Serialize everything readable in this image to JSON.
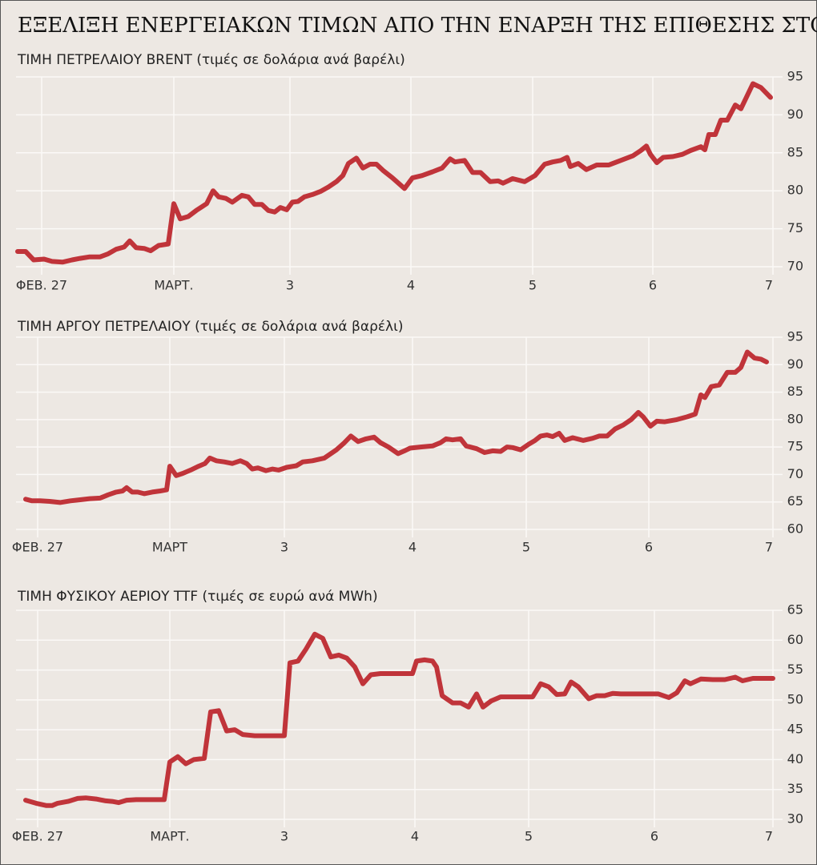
{
  "title": "ΕΞΕΛΙΞΗ ΕΝΕΡΓΕΙΑΚΩΝ ΤΙΜΩΝ ΑΠΟ ΤΗΝ ΕΝΑΡΞΗ ΤΗΣ ΕΠΙΘΕΣΗΣ ΣΤΟ ΙΡΑΝ",
  "chart_data": [
    {
      "type": "line",
      "subtitle": "ΤΙΜΗ ΠΕΤΡΕΛΑΙΟΥ BRENT (τιμές σε δολάρια ανά βαρέλι)",
      "color": "#c0343a",
      "grid": true,
      "xlim": [
        0,
        94.5
      ],
      "ylim": [
        70,
        95
      ],
      "yticks": [
        70,
        75,
        80,
        85,
        90,
        95
      ],
      "xticks": [
        {
          "value": 3.2,
          "label": "ΦΕΒ. 27"
        },
        {
          "value": 19.7,
          "label": "ΜΑΡΤ."
        },
        {
          "value": 34.2,
          "label": "3"
        },
        {
          "value": 49.3,
          "label": "4"
        },
        {
          "value": 64.5,
          "label": "5"
        },
        {
          "value": 79.5,
          "label": "6"
        },
        {
          "value": 94.5,
          "label": "7"
        }
      ],
      "x": [
        0.2,
        1.2,
        2.2,
        3.5,
        4.5,
        5.8,
        7,
        8,
        9.2,
        10.5,
        11.5,
        12.5,
        13.5,
        14.2,
        15,
        16,
        16.8,
        17.8,
        19,
        19.7,
        20.5,
        21.5,
        22.5,
        23.8,
        24.6,
        25.3,
        26.2,
        27,
        28.2,
        29,
        29.8,
        30.7,
        31.5,
        32.3,
        33,
        33.8,
        34.5,
        35.2,
        36,
        37,
        38,
        39,
        40,
        40.8,
        41.5,
        42.5,
        43.3,
        44.2,
        45,
        45.8,
        47,
        48.5,
        49.5,
        50.7,
        52,
        53.2,
        54.2,
        54.8,
        56,
        57,
        58,
        59.2,
        60.2,
        60.8,
        62,
        63.5,
        64.8,
        66,
        67,
        68,
        68.8,
        69.2,
        70.2,
        71.2,
        72.5,
        74,
        75.5,
        77,
        78,
        78.7,
        79.2,
        80,
        80.8,
        82,
        83.2,
        84.2,
        85.5,
        86,
        86.5,
        87.3,
        88,
        88.8,
        89.8,
        90.5,
        92,
        93,
        94.2
      ],
      "values": [
        72.0,
        72.0,
        70.9,
        71.0,
        70.7,
        70.6,
        70.9,
        71.1,
        71.3,
        71.3,
        71.7,
        72.3,
        72.6,
        73.4,
        72.5,
        72.4,
        72.1,
        72.8,
        73.0,
        78.3,
        76.3,
        76.6,
        77.4,
        78.3,
        80.0,
        79.2,
        79.0,
        78.5,
        79.4,
        79.2,
        78.2,
        78.2,
        77.4,
        77.2,
        77.8,
        77.5,
        78.5,
        78.6,
        79.2,
        79.5,
        79.9,
        80.5,
        81.2,
        82.0,
        83.6,
        84.3,
        83.0,
        83.5,
        83.5,
        82.7,
        81.7,
        80.3,
        81.7,
        82.0,
        82.5,
        83.0,
        84.2,
        83.8,
        84.0,
        82.4,
        82.4,
        81.2,
        81.3,
        81.0,
        81.6,
        81.2,
        82.0,
        83.5,
        83.8,
        84.0,
        84.4,
        83.2,
        83.6,
        82.8,
        83.4,
        83.4,
        84.0,
        84.6,
        85.3,
        85.9,
        84.8,
        83.7,
        84.4,
        84.5,
        84.8,
        85.3,
        85.8,
        85.4,
        87.4,
        87.4,
        89.3,
        89.3,
        91.3,
        90.8,
        94.1,
        93.6,
        92.3
      ]
    },
    {
      "type": "line",
      "subtitle": "ΤΙΜΗ ΑΡΓΟΥ ΠΕΤΡΕΛΑΙΟΥ (τιμές σε δολάρια ανά βαρέλι)",
      "color": "#c0343a",
      "grid": true,
      "xlim": [
        0,
        94.5
      ],
      "ylim": [
        60,
        95
      ],
      "yticks": [
        60,
        65,
        70,
        75,
        80,
        85,
        90,
        95
      ],
      "xticks": [
        {
          "value": 2.7,
          "label": "ΦΕΒ. 27"
        },
        {
          "value": 19.2,
          "label": "ΜΑΡΤ"
        },
        {
          "value": 33.5,
          "label": "3"
        },
        {
          "value": 49.5,
          "label": "4"
        },
        {
          "value": 63.7,
          "label": "5"
        },
        {
          "value": 79,
          "label": "6"
        },
        {
          "value": 94.5,
          "label": "7"
        }
      ],
      "x": [
        1.2,
        2,
        3,
        4.2,
        5.5,
        6.8,
        8,
        9.2,
        10.5,
        11.5,
        12.5,
        13.3,
        13.8,
        14.5,
        15.2,
        16,
        17,
        18,
        18.8,
        19.2,
        20,
        20.8,
        21.8,
        22.8,
        23.6,
        24.2,
        25,
        26,
        27,
        28,
        28.8,
        29.5,
        30.2,
        31.2,
        32,
        32.8,
        33.8,
        35,
        35.8,
        37,
        38.5,
        40,
        41,
        41.8,
        42.7,
        43.7,
        44.7,
        45.5,
        46.5,
        47.7,
        48.5,
        49.2,
        50.5,
        52,
        53,
        53.7,
        54.5,
        55.5,
        56.2,
        57.5,
        58.5,
        59.5,
        60.5,
        61.3,
        62,
        63,
        64,
        64.8,
        65.5,
        66.3,
        67,
        67.8,
        68.5,
        69.5,
        70.8,
        72,
        72.8,
        73.8,
        74.8,
        75.8,
        76.8,
        77.7,
        78.3,
        79.2,
        80,
        81,
        82.5,
        83.8,
        84.8,
        85.5,
        86,
        86.8,
        87.8,
        88.8,
        89.8,
        90.5,
        91.3,
        92.2,
        93,
        93.7
      ],
      "values": [
        65.5,
        65.2,
        65.2,
        65.1,
        64.9,
        65.2,
        65.4,
        65.6,
        65.7,
        66.3,
        66.8,
        67.0,
        67.6,
        66.8,
        66.8,
        66.5,
        66.8,
        67.0,
        67.2,
        71.5,
        69.8,
        70.2,
        70.8,
        71.5,
        72.0,
        73.0,
        72.5,
        72.3,
        72.0,
        72.5,
        72.0,
        71.0,
        71.2,
        70.7,
        71.0,
        70.8,
        71.3,
        71.6,
        72.3,
        72.5,
        73.0,
        74.5,
        75.8,
        77.0,
        76.0,
        76.5,
        76.8,
        75.8,
        75.0,
        73.8,
        74.3,
        74.8,
        75.0,
        75.2,
        75.8,
        76.5,
        76.3,
        76.5,
        75.2,
        74.7,
        74.0,
        74.3,
        74.2,
        75.0,
        74.9,
        74.5,
        75.5,
        76.2,
        77.0,
        77.2,
        76.9,
        77.5,
        76.2,
        76.7,
        76.2,
        76.6,
        77.0,
        77.0,
        78.3,
        79.0,
        80.0,
        81.3,
        80.5,
        78.8,
        79.7,
        79.6,
        80.0,
        80.5,
        81.0,
        84.5,
        84.0,
        86.0,
        86.3,
        88.6,
        88.6,
        89.5,
        92.3,
        91.2,
        91.0,
        90.5
      ]
    },
    {
      "type": "line",
      "subtitle": "ΤΙΜΗ ΦΥΣΙΚΟΥ ΑΕΡΙΟΥ TTF (τιμές σε ευρώ ανά MWh)",
      "color": "#c0343a",
      "grid": true,
      "xlim": [
        0,
        94.5
      ],
      "ylim": [
        30,
        65
      ],
      "yticks": [
        30,
        35,
        40,
        45,
        50,
        55,
        60,
        65
      ],
      "xticks": [
        {
          "value": 2.7,
          "label": "ΦΕΒ. 27"
        },
        {
          "value": 19.2,
          "label": "ΜΑΡΤ."
        },
        {
          "value": 33.5,
          "label": "3"
        },
        {
          "value": 49.8,
          "label": "4"
        },
        {
          "value": 64,
          "label": "5"
        },
        {
          "value": 79.7,
          "label": "6"
        },
        {
          "value": 94.5,
          "label": "7"
        }
      ],
      "x": [
        1.2,
        2.5,
        3.8,
        4.5,
        5.2,
        6.5,
        7.7,
        8.7,
        10,
        11.2,
        12,
        12.8,
        13.8,
        15,
        16.5,
        17.8,
        18.5,
        19.2,
        20.2,
        21.2,
        22.2,
        23.5,
        24.3,
        25.3,
        26.3,
        27.3,
        28.3,
        29.8,
        31.5,
        33.5,
        34.2,
        35.2,
        36.2,
        37.3,
        38.3,
        39.3,
        40.3,
        41.3,
        42.3,
        43.3,
        44.3,
        45.5,
        47,
        48.5,
        49.5,
        50,
        51,
        52,
        52.5,
        53.2,
        54.5,
        55.5,
        56.5,
        57.5,
        58.3,
        59.3,
        60.5,
        62,
        63.5,
        64.5,
        65.5,
        66.5,
        67.5,
        68.5,
        69.3,
        70.2,
        71.5,
        72.5,
        73.5,
        74.5,
        75.5,
        77,
        78.5,
        80.2,
        81.5,
        82.5,
        83.5,
        84.2,
        85.5,
        87,
        88.5,
        89.8,
        90.7,
        92,
        93.5,
        94.5
      ],
      "values": [
        33.2,
        32.7,
        32.3,
        32.3,
        32.7,
        33.0,
        33.5,
        33.6,
        33.4,
        33.1,
        33.0,
        32.8,
        33.2,
        33.3,
        33.3,
        33.3,
        33.3,
        39.6,
        40.5,
        39.3,
        40.0,
        40.2,
        48.0,
        48.2,
        44.8,
        45.0,
        44.2,
        44.0,
        44.0,
        44.0,
        56.2,
        56.5,
        58.5,
        61.0,
        60.3,
        57.2,
        57.5,
        57.0,
        55.5,
        52.7,
        54.2,
        54.4,
        54.4,
        54.4,
        54.4,
        56.5,
        56.7,
        56.5,
        55.5,
        50.7,
        49.5,
        49.5,
        48.8,
        51.0,
        48.8,
        49.8,
        50.5,
        50.5,
        50.5,
        50.5,
        52.7,
        52.2,
        50.9,
        51.0,
        53.0,
        52.2,
        50.2,
        50.7,
        50.7,
        51.1,
        51.0,
        51.0,
        51.0,
        51.0,
        50.4,
        51.2,
        53.2,
        52.7,
        53.5,
        53.4,
        53.4,
        53.8,
        53.2,
        53.6,
        53.6,
        53.6
      ]
    }
  ]
}
